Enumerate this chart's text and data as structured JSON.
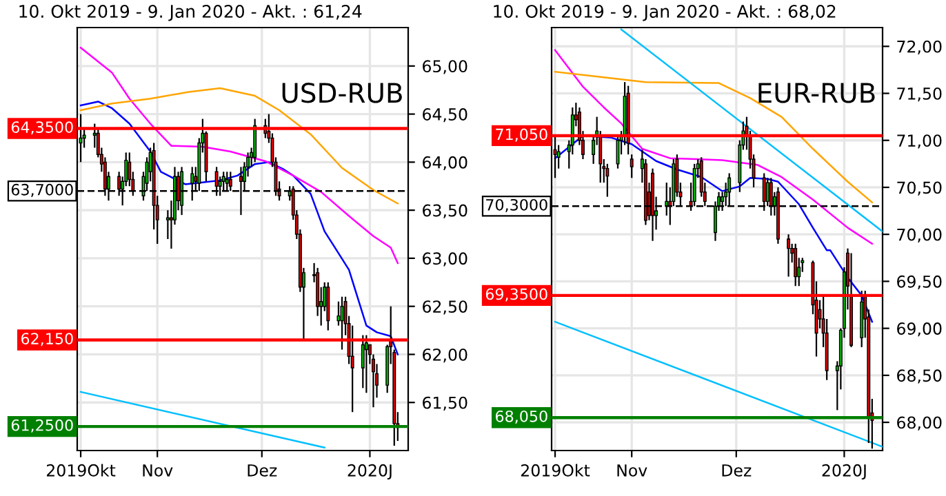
{
  "chart_data": [
    {
      "type": "candlestick",
      "title": "USD-RUB",
      "subtitle": "10. Okt 2019 - 9. Jan 2020 - Akt. : 61,24",
      "x": [
        "2019-10-10",
        "2019-10-11",
        "2019-10-14",
        "2019-10-15",
        "2019-10-16",
        "2019-10-17",
        "2019-10-18",
        "2019-10-21",
        "2019-10-22",
        "2019-10-23",
        "2019-10-24",
        "2019-10-25",
        "2019-10-28",
        "2019-10-29",
        "2019-10-30",
        "2019-10-31",
        "2019-11-01",
        "2019-11-04",
        "2019-11-05",
        "2019-11-06",
        "2019-11-07",
        "2019-11-08",
        "2019-11-11",
        "2019-11-12",
        "2019-11-13",
        "2019-11-14",
        "2019-11-15",
        "2019-11-18",
        "2019-11-19",
        "2019-11-20",
        "2019-11-21",
        "2019-11-22",
        "2019-11-25",
        "2019-11-26",
        "2019-11-27",
        "2019-11-28",
        "2019-11-29",
        "2019-12-02",
        "2019-12-03",
        "2019-12-04",
        "2019-12-05",
        "2019-12-06",
        "2019-12-09",
        "2019-12-10",
        "2019-12-11",
        "2019-12-12",
        "2019-12-13",
        "2019-12-16",
        "2019-12-17",
        "2019-12-18",
        "2019-12-19",
        "2019-12-20",
        "2019-12-23",
        "2019-12-24",
        "2019-12-25",
        "2019-12-26",
        "2019-12-27",
        "2019-12-30",
        "2019-12-31",
        "2020-01-01",
        "2020-01-02",
        "2020-01-03",
        "2020-01-06",
        "2020-01-07",
        "2020-01-08",
        "2020-01-09"
      ],
      "ohlc": [
        [
          64.2,
          64.5,
          64.0,
          64.25
        ],
        [
          64.25,
          64.35,
          64.15,
          64.28
        ],
        [
          64.28,
          64.4,
          64.15,
          64.3
        ],
        [
          64.3,
          64.35,
          64.05,
          64.08
        ],
        [
          64.08,
          64.15,
          63.9,
          63.98
        ],
        [
          64.0,
          64.05,
          63.65,
          63.72
        ],
        [
          63.72,
          63.9,
          63.6,
          63.85
        ],
        [
          63.85,
          63.9,
          63.65,
          63.72
        ],
        [
          63.72,
          63.85,
          63.55,
          63.8
        ],
        [
          63.8,
          64.1,
          63.75,
          64.02
        ],
        [
          64.0,
          64.1,
          63.75,
          63.82
        ],
        [
          63.82,
          63.9,
          63.65,
          63.7
        ],
        [
          63.65,
          63.9,
          63.6,
          63.85
        ],
        [
          63.78,
          64.05,
          63.7,
          64.0
        ],
        [
          63.9,
          64.15,
          63.8,
          64.1
        ],
        [
          64.12,
          64.2,
          63.3,
          63.55
        ],
        [
          63.55,
          63.65,
          63.15,
          63.4
        ],
        [
          63.4,
          63.5,
          63.2,
          63.42
        ],
        [
          63.42,
          63.6,
          63.1,
          63.4
        ],
        [
          63.4,
          63.95,
          63.35,
          63.85
        ],
        [
          63.85,
          63.9,
          63.5,
          63.6
        ],
        [
          63.55,
          63.95,
          63.45,
          63.9
        ],
        [
          63.78,
          63.95,
          63.6,
          63.88
        ],
        [
          63.85,
          63.95,
          63.7,
          63.8
        ],
        [
          63.78,
          64.25,
          63.7,
          64.2
        ],
        [
          64.2,
          64.45,
          64.1,
          64.3
        ],
        [
          64.3,
          64.32,
          63.8,
          63.9
        ],
        [
          63.9,
          63.95,
          63.65,
          63.75
        ],
        [
          63.75,
          63.85,
          63.65,
          63.8
        ],
        [
          63.8,
          63.9,
          63.7,
          63.85
        ],
        [
          63.78,
          63.9,
          63.7,
          63.82
        ],
        [
          63.82,
          63.9,
          63.7,
          63.75
        ],
        [
          63.85,
          63.95,
          63.45,
          63.8
        ],
        [
          63.8,
          64.0,
          63.7,
          63.95
        ],
        [
          63.95,
          64.1,
          63.85,
          64.05
        ],
        [
          64.05,
          64.15,
          63.95,
          64.1
        ],
        [
          64.05,
          64.45,
          64.0,
          64.38
        ],
        [
          64.38,
          64.45,
          64.25,
          64.3
        ],
        [
          64.32,
          64.5,
          64.2,
          64.25
        ],
        [
          64.25,
          64.3,
          63.95,
          64.0
        ],
        [
          64.0,
          64.05,
          63.65,
          63.7
        ],
        [
          63.72,
          63.8,
          63.6,
          63.65
        ],
        [
          63.65,
          63.75,
          63.6,
          63.7
        ],
        [
          63.72,
          63.75,
          63.4,
          63.45
        ],
        [
          63.45,
          63.5,
          63.2,
          63.25
        ],
        [
          63.25,
          63.3,
          62.65,
          62.7
        ],
        [
          62.7,
          62.9,
          62.15,
          62.85
        ],
        [
          62.82,
          62.95,
          62.75,
          62.82
        ],
        [
          62.85,
          62.9,
          62.4,
          62.5
        ],
        [
          62.5,
          62.7,
          62.3,
          62.55
        ],
        [
          62.5,
          62.75,
          62.45,
          62.7
        ],
        [
          62.7,
          62.75,
          62.25,
          62.35
        ],
        [
          62.35,
          62.55,
          62.3,
          62.4
        ],
        [
          62.35,
          62.6,
          62.05,
          62.5
        ],
        [
          62.55,
          62.6,
          62.2,
          62.32
        ],
        [
          62.32,
          62.4,
          61.9,
          61.98
        ],
        [
          61.98,
          62.3,
          61.4,
          61.86
        ],
        [
          61.86,
          62.2,
          61.65,
          62.1
        ],
        [
          62.05,
          62.2,
          61.6,
          62.12
        ],
        [
          62.1,
          62.1,
          61.9,
          62.0
        ],
        [
          61.95,
          62.0,
          61.45,
          61.82
        ],
        [
          61.8,
          61.9,
          61.55,
          61.68
        ],
        [
          61.68,
          62.1,
          61.6,
          62.08
        ],
        [
          62.15,
          62.5,
          61.9,
          62.08
        ],
        [
          62.02,
          62.05,
          61.05,
          61.28
        ],
        [
          61.28,
          61.4,
          61.1,
          61.24
        ]
      ],
      "series": [
        {
          "type": "line",
          "color": "#0000ff",
          "x": [
            "2019-10-10",
            "2019-10-15",
            "2019-10-19",
            "2019-10-24",
            "2019-10-30",
            "2019-11-02",
            "2019-11-09",
            "2019-11-14",
            "2019-11-19",
            "2019-11-24",
            "2019-11-29",
            "2019-12-03",
            "2019-12-07",
            "2019-12-10",
            "2019-12-15",
            "2019-12-19",
            "2019-12-22",
            "2019-12-26",
            "2019-12-31",
            "2020-01-03",
            "2020-01-07",
            "2020-01-09"
          ],
          "values": [
            64.59,
            64.63,
            64.56,
            64.4,
            64.11,
            63.9,
            63.77,
            63.79,
            63.81,
            63.86,
            63.98,
            64.0,
            63.93,
            63.86,
            63.67,
            63.28,
            63.11,
            62.88,
            62.3,
            62.23,
            62.19,
            62.0
          ]
        },
        {
          "type": "line",
          "color": "#ff00ff",
          "x": [
            "2019-10-10",
            "2019-10-19",
            "2019-10-24",
            "2019-10-30",
            "2019-11-05",
            "2019-11-14",
            "2019-11-22",
            "2019-12-02",
            "2019-12-10",
            "2019-12-18",
            "2019-12-26",
            "2020-01-02",
            "2020-01-07",
            "2020-01-09"
          ],
          "values": [
            65.19,
            64.93,
            64.66,
            64.4,
            64.17,
            64.16,
            64.11,
            64.01,
            63.86,
            63.69,
            63.44,
            63.23,
            63.11,
            62.95
          ]
        },
        {
          "type": "line",
          "color": "#ffa500",
          "x": [
            "2019-10-10",
            "2019-10-19",
            "2019-10-30",
            "2019-11-10",
            "2019-11-19",
            "2019-11-29",
            "2019-12-06",
            "2019-12-15",
            "2019-12-24",
            "2020-01-02",
            "2020-01-09"
          ],
          "values": [
            64.54,
            64.61,
            64.66,
            64.73,
            64.77,
            64.69,
            64.54,
            64.29,
            63.94,
            63.71,
            63.57
          ]
        },
        {
          "type": "line",
          "color": "#00bfff",
          "x": [
            "2019-10-10",
            "2019-12-19"
          ],
          "values": [
            61.61,
            61.03
          ]
        }
      ],
      "ref_lines": [
        {
          "axis": "y",
          "value": 64.35,
          "label": "64,3500",
          "color": "#ff0000"
        },
        {
          "axis": "y",
          "value": 63.7,
          "label": "63,7000",
          "color": "#000000",
          "line_style": "dashed"
        },
        {
          "axis": "y",
          "value": 62.15,
          "label": "62,150",
          "color": "#ff0000"
        },
        {
          "axis": "y",
          "value": 61.25,
          "label": "61,2500",
          "color": "#008000"
        }
      ],
      "xlim": [
        "2019-10-09",
        "2020-01-12"
      ],
      "xticks": [
        {
          "value": "2019-10-10",
          "label": "2019Okt"
        },
        {
          "value": "2019-11-01",
          "label": "Nov"
        },
        {
          "value": "2019-12-01",
          "label": "Dez"
        },
        {
          "value": "2020-01-01",
          "label": "2020J"
        }
      ],
      "ylim": [
        61.0,
        65.4
      ],
      "yticks": [
        {
          "value": 61.5,
          "label": "61,50"
        },
        {
          "value": 62.0,
          "label": "62,00"
        },
        {
          "value": 62.5,
          "label": "62,50"
        },
        {
          "value": 63.0,
          "label": "63,00"
        },
        {
          "value": 63.5,
          "label": "63,50"
        },
        {
          "value": 64.0,
          "label": "64,00"
        },
        {
          "value": 64.5,
          "label": "64,50"
        },
        {
          "value": 65.0,
          "label": "65,00"
        }
      ],
      "grid": true
    },
    {
      "type": "candlestick",
      "title": "EUR-RUB",
      "subtitle": "10. Okt 2019 - 9. Jan 2020 - Akt. : 68,02",
      "x": [
        "2019-10-10",
        "2019-10-11",
        "2019-10-14",
        "2019-10-15",
        "2019-10-16",
        "2019-10-17",
        "2019-10-18",
        "2019-10-21",
        "2019-10-22",
        "2019-10-23",
        "2019-10-24",
        "2019-10-25",
        "2019-10-28",
        "2019-10-29",
        "2019-10-30",
        "2019-10-31",
        "2019-11-01",
        "2019-11-04",
        "2019-11-05",
        "2019-11-06",
        "2019-11-07",
        "2019-11-08",
        "2019-11-11",
        "2019-11-12",
        "2019-11-13",
        "2019-11-14",
        "2019-11-15",
        "2019-11-18",
        "2019-11-19",
        "2019-11-20",
        "2019-11-21",
        "2019-11-22",
        "2019-11-25",
        "2019-11-26",
        "2019-11-27",
        "2019-11-28",
        "2019-11-29",
        "2019-12-02",
        "2019-12-03",
        "2019-12-04",
        "2019-12-05",
        "2019-12-06",
        "2019-12-09",
        "2019-12-10",
        "2019-12-11",
        "2019-12-12",
        "2019-12-13",
        "2019-12-16",
        "2019-12-17",
        "2019-12-18",
        "2019-12-19",
        "2019-12-20",
        "2019-12-23",
        "2019-12-24",
        "2019-12-25",
        "2019-12-26",
        "2019-12-27",
        "2019-12-30",
        "2019-12-31",
        "2020-01-01",
        "2020-01-02",
        "2020-01-03",
        "2020-01-06",
        "2020-01-07",
        "2020-01-08",
        "2020-01-09"
      ],
      "ohlc": [
        [
          70.9,
          71.05,
          70.6,
          70.85
        ],
        [
          70.82,
          70.95,
          70.7,
          70.88
        ],
        [
          70.88,
          71.0,
          70.7,
          70.95
        ],
        [
          70.95,
          71.35,
          70.85,
          71.27
        ],
        [
          71.27,
          71.4,
          71.15,
          71.22
        ],
        [
          71.3,
          71.35,
          70.95,
          71.0
        ],
        [
          71.0,
          71.1,
          70.8,
          70.85
        ],
        [
          70.85,
          71.05,
          70.75,
          71.0
        ],
        [
          71.05,
          71.25,
          70.95,
          71.1
        ],
        [
          71.05,
          71.1,
          70.55,
          70.75
        ],
        [
          70.72,
          70.8,
          70.55,
          70.7
        ],
        [
          70.7,
          70.75,
          70.4,
          70.62
        ],
        [
          70.75,
          71.05,
          70.7,
          71.0
        ],
        [
          71.0,
          71.1,
          70.85,
          71.05
        ],
        [
          71.05,
          71.62,
          70.95,
          71.47
        ],
        [
          71.5,
          71.58,
          70.85,
          70.97
        ],
        [
          70.8,
          70.85,
          70.6,
          70.72
        ],
        [
          70.7,
          70.9,
          70.55,
          70.8
        ],
        [
          70.75,
          70.8,
          70.1,
          70.15
        ],
        [
          70.45,
          70.55,
          70.15,
          70.2
        ],
        [
          70.65,
          70.7,
          69.93,
          70.2
        ],
        [
          70.2,
          70.4,
          70.05,
          70.25
        ],
        [
          70.3,
          70.55,
          70.2,
          70.35
        ],
        [
          70.35,
          70.5,
          70.1,
          70.3
        ],
        [
          70.35,
          70.8,
          70.3,
          70.75
        ],
        [
          70.8,
          70.85,
          70.4,
          70.45
        ],
        [
          70.45,
          70.55,
          70.3,
          70.4
        ],
        [
          70.35,
          70.55,
          70.25,
          70.3
        ],
        [
          70.35,
          70.75,
          70.3,
          70.7
        ],
        [
          70.7,
          70.8,
          70.6,
          70.75
        ],
        [
          70.78,
          70.82,
          70.4,
          70.45
        ],
        [
          70.45,
          70.55,
          70.3,
          70.35
        ],
        [
          70.02,
          70.35,
          69.93,
          70.3
        ],
        [
          70.3,
          70.45,
          70.25,
          70.4
        ],
        [
          70.35,
          70.45,
          70.25,
          70.4
        ],
        [
          70.4,
          70.55,
          70.3,
          70.45
        ],
        [
          70.45,
          70.65,
          70.3,
          70.6
        ],
        [
          70.55,
          71.0,
          70.45,
          70.95
        ],
        [
          70.95,
          71.2,
          70.9,
          71.1
        ],
        [
          71.15,
          71.25,
          70.9,
          71.05
        ],
        [
          71.05,
          71.1,
          70.7,
          70.8
        ],
        [
          70.8,
          70.85,
          70.5,
          70.6
        ],
        [
          70.6,
          70.65,
          70.25,
          70.35
        ],
        [
          70.35,
          70.6,
          70.3,
          70.55
        ],
        [
          70.55,
          70.6,
          70.2,
          70.3
        ],
        [
          70.3,
          70.45,
          70.2,
          70.4
        ],
        [
          70.45,
          70.5,
          69.9,
          69.95
        ],
        [
          69.95,
          70.0,
          69.55,
          69.85
        ],
        [
          69.85,
          69.9,
          69.7,
          69.8
        ],
        [
          69.85,
          69.9,
          69.45,
          69.55
        ],
        [
          69.55,
          69.75,
          69.45,
          69.65
        ],
        [
          69.7,
          69.75,
          69.6,
          69.72
        ],
        [
          69.7,
          69.72,
          69.15,
          69.25
        ],
        [
          69.3,
          69.5,
          68.7,
          68.95
        ],
        [
          69.2,
          69.3,
          69.0,
          69.1
        ],
        [
          69.1,
          69.35,
          68.8,
          68.95
        ],
        [
          68.95,
          69.1,
          68.45,
          68.55
        ],
        [
          68.55,
          68.65,
          68.13,
          68.6
        ],
        [
          68.6,
          69.0,
          68.35,
          68.98
        ],
        [
          69.0,
          69.65,
          68.9,
          69.6
        ],
        [
          69.8,
          69.85,
          69.2,
          69.45
        ],
        [
          69.34,
          69.8,
          68.8,
          68.82
        ],
        [
          68.9,
          69.4,
          68.8,
          69.28
        ],
        [
          69.35,
          69.4,
          68.9,
          69.1
        ],
        [
          69.12,
          69.2,
          67.78,
          68.05
        ],
        [
          68.1,
          68.25,
          67.72,
          68.02
        ]
      ],
      "series": [
        {
          "type": "line",
          "color": "#0000ff",
          "x": [
            "2019-10-10",
            "2019-10-18",
            "2019-10-26",
            "2019-11-01",
            "2019-11-08",
            "2019-11-14",
            "2019-11-21",
            "2019-11-27",
            "2019-12-02",
            "2019-12-05",
            "2019-12-10",
            "2019-12-13",
            "2019-12-19",
            "2019-12-23",
            "2019-12-27",
            "2019-12-28",
            "2020-01-02",
            "2020-01-06",
            "2020-01-09"
          ],
          "values": [
            70.81,
            71.05,
            71.03,
            70.96,
            70.78,
            70.69,
            70.61,
            70.46,
            70.51,
            70.6,
            70.59,
            70.56,
            70.32,
            70.07,
            69.83,
            69.83,
            69.54,
            69.35,
            69.07
          ]
        },
        {
          "type": "line",
          "color": "#ff00ff",
          "x": [
            "2019-10-10",
            "2019-10-18",
            "2019-10-24",
            "2019-10-29",
            "2019-11-04",
            "2019-11-12",
            "2019-11-27",
            "2019-12-07",
            "2019-12-14",
            "2019-12-23",
            "2020-01-02",
            "2020-01-09"
          ],
          "values": [
            71.96,
            71.57,
            71.35,
            71.18,
            70.91,
            70.81,
            70.79,
            70.74,
            70.61,
            70.37,
            70.07,
            69.9
          ]
        },
        {
          "type": "line",
          "color": "#ffa500",
          "x": [
            "2019-10-10",
            "2019-10-24",
            "2019-11-05",
            "2019-11-26",
            "2019-12-05",
            "2019-12-14",
            "2019-12-23",
            "2020-01-02",
            "2020-01-09"
          ],
          "values": [
            71.73,
            71.67,
            71.62,
            71.61,
            71.45,
            71.25,
            70.91,
            70.56,
            70.34
          ]
        },
        {
          "type": "line",
          "color": "#00bfff",
          "x": [
            "2019-10-29",
            "2020-01-12"
          ],
          "values": [
            72.18,
            70.03
          ]
        },
        {
          "type": "line",
          "color": "#00bfff",
          "x": [
            "2019-10-10",
            "2020-01-12"
          ],
          "values": [
            69.07,
            67.74
          ]
        }
      ],
      "ref_lines": [
        {
          "axis": "y",
          "value": 71.05,
          "label": "71,050",
          "color": "#ff0000"
        },
        {
          "axis": "y",
          "value": 70.3,
          "label": "70,3000",
          "color": "#000000",
          "line_style": "dashed"
        },
        {
          "axis": "y",
          "value": 69.35,
          "label": "69,3500",
          "color": "#ff0000"
        },
        {
          "axis": "y",
          "value": 68.05,
          "label": "68,050",
          "color": "#008000"
        }
      ],
      "xlim": [
        "2019-10-09",
        "2020-01-12"
      ],
      "xticks": [
        {
          "value": "2019-10-10",
          "label": "2019Okt"
        },
        {
          "value": "2019-11-01",
          "label": "Nov"
        },
        {
          "value": "2019-12-01",
          "label": "Dez"
        },
        {
          "value": "2020-01-01",
          "label": "2020J"
        }
      ],
      "ylim": [
        67.7,
        72.2
      ],
      "yticks": [
        {
          "value": 68.0,
          "label": "68,00"
        },
        {
          "value": 68.5,
          "label": "68,50"
        },
        {
          "value": 69.0,
          "label": "69,00"
        },
        {
          "value": 69.5,
          "label": "69,50"
        },
        {
          "value": 70.0,
          "label": "70,00"
        },
        {
          "value": 70.5,
          "label": "70,50"
        },
        {
          "value": 71.0,
          "label": "71,00"
        },
        {
          "value": 71.5,
          "label": "71,50"
        },
        {
          "value": 72.0,
          "label": "72,00"
        }
      ],
      "grid": true
    }
  ]
}
